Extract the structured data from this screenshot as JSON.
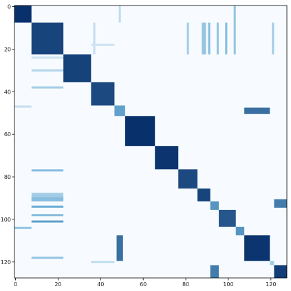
{
  "chart_data": {
    "type": "heatmap",
    "title": "",
    "xlabel": "",
    "ylabel": "",
    "matrix_size": 128,
    "xlim": [
      0,
      128
    ],
    "ylim": [
      128,
      0
    ],
    "xticks": [
      0,
      20,
      40,
      60,
      80,
      100,
      120
    ],
    "yticks": [
      0,
      20,
      40,
      60,
      80,
      100,
      120
    ],
    "colormap": {
      "low": "#f7fbff",
      "mid": "#6baed6",
      "high": "#08306b"
    },
    "blocks": [
      {
        "start": 0,
        "end": 8,
        "value": 1.0
      },
      {
        "start": 8,
        "end": 23,
        "value": 0.92
      },
      {
        "start": 23,
        "end": 36,
        "value": 0.93
      },
      {
        "start": 36,
        "end": 47,
        "value": 0.9
      },
      {
        "start": 47,
        "end": 52,
        "value": 0.55
      },
      {
        "start": 52,
        "end": 66,
        "value": 1.0
      },
      {
        "start": 66,
        "end": 77,
        "value": 0.98
      },
      {
        "start": 77,
        "end": 86,
        "value": 0.9
      },
      {
        "start": 86,
        "end": 92,
        "value": 0.92
      },
      {
        "start": 92,
        "end": 96,
        "value": 0.6
      },
      {
        "start": 96,
        "end": 104,
        "value": 0.85
      },
      {
        "start": 104,
        "end": 108,
        "value": 0.6
      },
      {
        "start": 108,
        "end": 120,
        "value": 0.98
      },
      {
        "start": 120,
        "end": 122,
        "value": 0.3
      },
      {
        "start": 122,
        "end": 128,
        "value": 0.95
      }
    ],
    "off_diagonal": [
      {
        "rows": [
          0,
          8
        ],
        "cols": [
          49,
          50
        ],
        "value": 0.2
      },
      {
        "rows": [
          0,
          8
        ],
        "cols": [
          103,
          104
        ],
        "value": 0.35
      },
      {
        "rows": [
          8,
          23
        ],
        "cols": [
          37,
          38
        ],
        "value": 0.18
      },
      {
        "rows": [
          8,
          23
        ],
        "cols": [
          81,
          82
        ],
        "value": 0.3
      },
      {
        "rows": [
          8,
          23
        ],
        "cols": [
          88,
          90
        ],
        "value": 0.35
      },
      {
        "rows": [
          8,
          23
        ],
        "cols": [
          91,
          92
        ],
        "value": 0.4
      },
      {
        "rows": [
          8,
          23
        ],
        "cols": [
          95,
          96
        ],
        "value": 0.35
      },
      {
        "rows": [
          8,
          23
        ],
        "cols": [
          99,
          100
        ],
        "value": 0.4
      },
      {
        "rows": [
          8,
          23
        ],
        "cols": [
          103,
          104
        ],
        "value": 0.35
      },
      {
        "rows": [
          8,
          23
        ],
        "cols": [
          121,
          122
        ],
        "value": 0.3
      },
      {
        "rows": [
          18,
          19
        ],
        "cols": [
          36,
          47
        ],
        "value": 0.15
      },
      {
        "rows": [
          24,
          25
        ],
        "cols": [
          8,
          23
        ],
        "value": 0.15
      },
      {
        "rows": [
          30,
          31
        ],
        "cols": [
          8,
          23
        ],
        "value": 0.25
      },
      {
        "rows": [
          38,
          39
        ],
        "cols": [
          8,
          23
        ],
        "value": 0.3
      },
      {
        "rows": [
          47,
          48
        ],
        "cols": [
          0,
          8
        ],
        "value": 0.18
      },
      {
        "rows": [
          48,
          51
        ],
        "cols": [
          108,
          120
        ],
        "value": 0.75
      },
      {
        "rows": [
          77,
          78
        ],
        "cols": [
          8,
          23
        ],
        "value": 0.4
      },
      {
        "rows": [
          88,
          90
        ],
        "cols": [
          8,
          23
        ],
        "value": 0.3
      },
      {
        "rows": [
          90,
          92
        ],
        "cols": [
          8,
          23
        ],
        "value": 0.4
      },
      {
        "rows": [
          94,
          95
        ],
        "cols": [
          8,
          23
        ],
        "value": 0.5
      },
      {
        "rows": [
          98,
          99
        ],
        "cols": [
          8,
          23
        ],
        "value": 0.4
      },
      {
        "rows": [
          101,
          102
        ],
        "cols": [
          8,
          23
        ],
        "value": 0.55
      },
      {
        "rows": [
          104,
          105
        ],
        "cols": [
          0,
          8
        ],
        "value": 0.35
      },
      {
        "rows": [
          91,
          95
        ],
        "cols": [
          122,
          128
        ],
        "value": 0.7
      },
      {
        "rows": [
          108,
          120
        ],
        "cols": [
          48,
          51
        ],
        "value": 0.75
      },
      {
        "rows": [
          118,
          119
        ],
        "cols": [
          8,
          23
        ],
        "value": 0.35
      },
      {
        "rows": [
          120,
          121
        ],
        "cols": [
          36,
          47
        ],
        "value": 0.2
      },
      {
        "rows": [
          122,
          128
        ],
        "cols": [
          92,
          96
        ],
        "value": 0.7
      }
    ],
    "grid": false,
    "legend": "none"
  }
}
